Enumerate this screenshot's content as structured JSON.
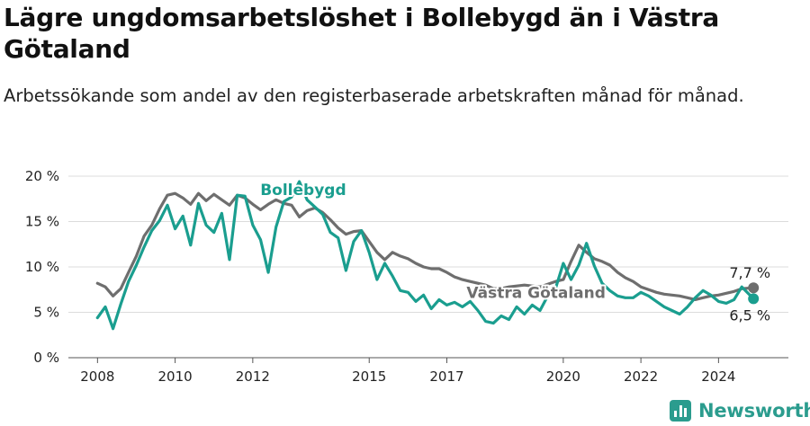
{
  "chart_data": {
    "type": "line",
    "title": "Lägre ungdomsarbetslöshet i Bollebygd än i Västra Götaland",
    "subtitle": "Arbetssökande som andel av den registerbaserade arbetskraften månad för månad.",
    "y_ticks": [
      "0 %",
      "5 %",
      "10 %",
      "15 %",
      "20 %"
    ],
    "x_ticks": [
      "2008",
      "2010",
      "2012",
      "2015",
      "2017",
      "2020",
      "2022",
      "2024"
    ],
    "ylim": [
      0,
      20
    ],
    "xlim": [
      2007.25,
      2025.8
    ],
    "grid": true,
    "series": [
      {
        "name": "Västra Götaland",
        "color": "#6e6e6e",
        "end_label": "7,7 %",
        "x": [
          2008.0,
          2008.2,
          2008.4,
          2008.6,
          2008.8,
          2009.0,
          2009.2,
          2009.4,
          2009.6,
          2009.8,
          2010.0,
          2010.2,
          2010.4,
          2010.6,
          2010.8,
          2011.0,
          2011.2,
          2011.4,
          2011.6,
          2011.8,
          2012.0,
          2012.2,
          2012.4,
          2012.6,
          2012.8,
          2013.0,
          2013.2,
          2013.4,
          2013.6,
          2013.8,
          2014.0,
          2014.2,
          2014.4,
          2014.6,
          2014.8,
          2015.0,
          2015.2,
          2015.4,
          2015.6,
          2015.8,
          2016.0,
          2016.2,
          2016.4,
          2016.6,
          2016.8,
          2017.0,
          2017.2,
          2017.4,
          2017.6,
          2017.8,
          2018.0,
          2018.2,
          2018.4,
          2018.6,
          2018.8,
          2019.0,
          2019.2,
          2019.4,
          2019.6,
          2019.8,
          2020.0,
          2020.2,
          2020.4,
          2020.6,
          2020.8,
          2021.0,
          2021.2,
          2021.4,
          2021.6,
          2021.8,
          2022.0,
          2022.2,
          2022.4,
          2022.6,
          2022.8,
          2023.0,
          2023.2,
          2023.4,
          2023.6,
          2023.8,
          2024.0,
          2024.2,
          2024.4,
          2024.6,
          2024.9
        ],
        "values": [
          8.2,
          7.8,
          6.8,
          7.6,
          9.4,
          11.2,
          13.4,
          14.6,
          16.4,
          17.9,
          18.1,
          17.6,
          16.9,
          18.1,
          17.3,
          18.0,
          17.4,
          16.8,
          17.9,
          17.6,
          16.9,
          16.3,
          16.9,
          17.4,
          17.0,
          16.8,
          15.5,
          16.2,
          16.5,
          16.0,
          15.2,
          14.3,
          13.6,
          13.9,
          14.0,
          12.8,
          11.6,
          10.8,
          11.6,
          11.2,
          10.9,
          10.4,
          10.0,
          9.8,
          9.8,
          9.4,
          8.9,
          8.6,
          8.4,
          8.2,
          8.0,
          7.6,
          7.6,
          7.8,
          7.9,
          8.0,
          7.9,
          7.8,
          8.1,
          8.4,
          8.6,
          10.6,
          12.4,
          11.6,
          10.9,
          10.6,
          10.2,
          9.4,
          8.8,
          8.4,
          7.8,
          7.5,
          7.2,
          7.0,
          6.9,
          6.8,
          6.6,
          6.4,
          6.6,
          6.8,
          6.9,
          7.1,
          7.3,
          7.6,
          7.7
        ]
      },
      {
        "name": "Bollebygd",
        "color": "#1a9e8f",
        "end_label": "6,5 %",
        "x": [
          2008.0,
          2008.2,
          2008.4,
          2008.6,
          2008.8,
          2009.0,
          2009.2,
          2009.4,
          2009.6,
          2009.8,
          2010.0,
          2010.2,
          2010.4,
          2010.6,
          2010.8,
          2011.0,
          2011.2,
          2011.4,
          2011.6,
          2011.8,
          2012.0,
          2012.2,
          2012.4,
          2012.6,
          2012.8,
          2013.0,
          2013.2,
          2013.4,
          2013.6,
          2013.8,
          2014.0,
          2014.2,
          2014.4,
          2014.6,
          2014.8,
          2015.0,
          2015.2,
          2015.4,
          2015.6,
          2015.8,
          2016.0,
          2016.2,
          2016.4,
          2016.6,
          2016.8,
          2017.0,
          2017.2,
          2017.4,
          2017.6,
          2017.8,
          2018.0,
          2018.2,
          2018.4,
          2018.6,
          2018.8,
          2019.0,
          2019.2,
          2019.4,
          2019.6,
          2019.8,
          2020.0,
          2020.2,
          2020.4,
          2020.6,
          2020.8,
          2021.0,
          2021.2,
          2021.4,
          2021.6,
          2021.8,
          2022.0,
          2022.2,
          2022.4,
          2022.6,
          2022.8,
          2023.0,
          2023.2,
          2023.4,
          2023.6,
          2023.8,
          2024.0,
          2024.2,
          2024.4,
          2024.6,
          2024.9
        ],
        "values": [
          4.4,
          5.6,
          3.2,
          5.9,
          8.4,
          10.2,
          12.2,
          14.0,
          15.1,
          16.8,
          14.2,
          15.6,
          12.4,
          17.0,
          14.6,
          13.8,
          15.9,
          10.8,
          17.9,
          17.8,
          14.6,
          13.0,
          9.4,
          14.4,
          17.2,
          17.7,
          19.4,
          17.4,
          16.6,
          15.8,
          13.8,
          13.2,
          9.6,
          12.8,
          14.0,
          11.6,
          8.6,
          10.4,
          9.0,
          7.4,
          7.2,
          6.2,
          6.9,
          5.4,
          6.4,
          5.8,
          6.1,
          5.6,
          6.2,
          5.2,
          4.0,
          3.8,
          4.6,
          4.2,
          5.6,
          4.8,
          5.8,
          5.2,
          6.8,
          7.6,
          10.4,
          8.6,
          10.2,
          12.6,
          10.1,
          8.2,
          7.4,
          6.8,
          6.6,
          6.6,
          7.2,
          6.8,
          6.2,
          5.6,
          5.2,
          4.8,
          5.6,
          6.6,
          7.4,
          6.9,
          6.2,
          6.0,
          6.4,
          7.8,
          6.5
        ]
      }
    ]
  },
  "brand": {
    "name": "Newsworthy"
  }
}
